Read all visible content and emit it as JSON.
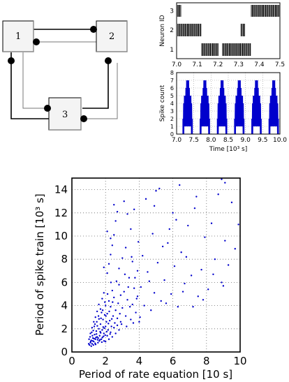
{
  "diagram": {
    "nodes": [
      {
        "id": "n1",
        "label": "1"
      },
      {
        "id": "n2",
        "label": "2"
      },
      {
        "id": "n3",
        "label": "3"
      }
    ]
  },
  "chart_data": [
    {
      "type": "raster",
      "ylabel": "Neuron ID",
      "xlim": [
        7.0,
        7.5
      ],
      "x_ticks": [
        "7.0",
        "7.1",
        "7.2",
        "7.3",
        "7.4",
        "7.5"
      ],
      "y_ticks": [
        "1",
        "2",
        "3"
      ],
      "series": [
        {
          "neuron": 3,
          "bursts": [
            [
              7.0,
              7.02
            ],
            [
              7.36,
              7.5
            ]
          ]
        },
        {
          "neuron": 2,
          "bursts": [
            [
              7.005,
              7.12
            ],
            [
              7.31,
              7.33
            ]
          ]
        },
        {
          "neuron": 1,
          "bursts": [
            [
              7.12,
              7.2
            ],
            [
              7.22,
              7.36
            ]
          ]
        }
      ]
    },
    {
      "type": "line",
      "ylabel": "Spike count",
      "xlabel": "Time [10³ s]",
      "xlim": [
        7.0,
        10.0
      ],
      "ylim": [
        0,
        8
      ],
      "x_ticks": [
        "7.0",
        "7.5",
        "8.0",
        "8.5",
        "9.0",
        "9.5",
        "10.0"
      ],
      "y_ticks": [
        "0",
        "1",
        "2",
        "3",
        "4",
        "5",
        "6",
        "7",
        "8"
      ],
      "grid": true,
      "cycle_starts": [
        7.18,
        7.68,
        8.18,
        8.68,
        9.18,
        9.68
      ],
      "cycle_length": 0.28,
      "peak": 7
    },
    {
      "type": "scatter",
      "xlabel": "Period of rate equation [10 s]",
      "ylabel": "Period of spike train [10³ s]",
      "xlim": [
        0,
        10
      ],
      "ylim": [
        0,
        15
      ],
      "x_ticks": [
        "0",
        "2",
        "4",
        "6",
        "8",
        "10"
      ],
      "y_ticks": [
        "0",
        "2",
        "4",
        "6",
        "8",
        "10",
        "12",
        "14"
      ],
      "grid": true,
      "point_color": "#0000cc",
      "points": [
        [
          1.05,
          0.6
        ],
        [
          1.1,
          0.8
        ],
        [
          1.15,
          1.0
        ],
        [
          1.2,
          0.7
        ],
        [
          1.25,
          1.2
        ],
        [
          1.3,
          0.9
        ],
        [
          1.35,
          1.5
        ],
        [
          1.4,
          1.1
        ],
        [
          1.45,
          1.8
        ],
        [
          1.5,
          1.3
        ],
        [
          1.55,
          0.8
        ],
        [
          1.6,
          2.0
        ],
        [
          1.65,
          1.4
        ],
        [
          1.7,
          2.4
        ],
        [
          1.75,
          1.1
        ],
        [
          1.8,
          1.9
        ],
        [
          1.85,
          2.8
        ],
        [
          1.9,
          1.6
        ],
        [
          1.95,
          3.2
        ],
        [
          2.0,
          2.2
        ],
        [
          1.1,
          1.6
        ],
        [
          1.2,
          2.1
        ],
        [
          1.3,
          2.6
        ],
        [
          1.4,
          3.0
        ],
        [
          1.5,
          3.5
        ],
        [
          1.6,
          4.1
        ],
        [
          1.7,
          3.7
        ],
        [
          1.8,
          4.6
        ],
        [
          1.9,
          5.1
        ],
        [
          2.0,
          4.0
        ],
        [
          1.15,
          0.5
        ],
        [
          1.22,
          1.4
        ],
        [
          1.28,
          0.6
        ],
        [
          1.33,
          2.2
        ],
        [
          1.38,
          0.75
        ],
        [
          1.43,
          1.25
        ],
        [
          1.48,
          2.6
        ],
        [
          1.53,
          1.05
        ],
        [
          1.58,
          3.1
        ],
        [
          1.63,
          0.95
        ],
        [
          1.68,
          1.75
        ],
        [
          1.73,
          2.9
        ],
        [
          1.78,
          0.85
        ],
        [
          1.83,
          3.6
        ],
        [
          1.88,
          1.35
        ],
        [
          1.93,
          2.05
        ],
        [
          1.98,
          1.45
        ],
        [
          2.05,
          2.6
        ],
        [
          2.1,
          3.3
        ],
        [
          2.15,
          1.9
        ],
        [
          2.2,
          4.4
        ],
        [
          2.25,
          2.7
        ],
        [
          2.3,
          3.9
        ],
        [
          2.35,
          2.2
        ],
        [
          2.4,
          5.3
        ],
        [
          2.45,
          3.1
        ],
        [
          2.5,
          4.7
        ],
        [
          2.55,
          2.5
        ],
        [
          2.6,
          3.6
        ],
        [
          2.65,
          6.1
        ],
        [
          2.7,
          2.9
        ],
        [
          2.75,
          4.2
        ],
        [
          2.8,
          5.8
        ],
        [
          2.85,
          3.3
        ],
        [
          2.9,
          4.9
        ],
        [
          2.95,
          2.4
        ],
        [
          3.0,
          3.8
        ],
        [
          3.1,
          5.2
        ],
        [
          3.2,
          3.1
        ],
        [
          3.3,
          4.5
        ],
        [
          3.4,
          6.4
        ],
        [
          3.5,
          2.8
        ],
        [
          3.6,
          4.1
        ],
        [
          3.7,
          5.5
        ],
        [
          3.8,
          3.4
        ],
        [
          3.9,
          4.8
        ],
        [
          4.0,
          2.6
        ],
        [
          2.1,
          6.8
        ],
        [
          2.2,
          7.6
        ],
        [
          2.3,
          8.4
        ],
        [
          2.4,
          9.2
        ],
        [
          2.5,
          10.1
        ],
        [
          2.6,
          11.3
        ],
        [
          2.5,
          12.7
        ],
        [
          3.1,
          13.0
        ],
        [
          2.8,
          7.2
        ],
        [
          3.0,
          8.1
        ],
        [
          3.2,
          9.0
        ],
        [
          3.3,
          11.9
        ],
        [
          3.5,
          10.6
        ],
        [
          3.6,
          7.8
        ],
        [
          2.7,
          12.1
        ],
        [
          2.1,
          10.4
        ],
        [
          1.9,
          7.3
        ],
        [
          2.3,
          9.8
        ],
        [
          4.1,
          5.6
        ],
        [
          4.3,
          4.0
        ],
        [
          4.5,
          6.9
        ],
        [
          4.7,
          3.6
        ],
        [
          4.9,
          5.1
        ],
        [
          5.1,
          7.7
        ],
        [
          5.3,
          4.4
        ],
        [
          5.5,
          6.2
        ],
        [
          5.7,
          9.4
        ],
        [
          5.9,
          5.0
        ],
        [
          6.1,
          7.4
        ],
        [
          6.3,
          3.9
        ],
        [
          6.5,
          8.6
        ],
        [
          6.7,
          5.9
        ],
        [
          6.9,
          10.9
        ],
        [
          7.1,
          6.6
        ],
        [
          7.3,
          12.4
        ],
        [
          7.5,
          4.8
        ],
        [
          7.7,
          7.1
        ],
        [
          7.9,
          9.9
        ],
        [
          8.1,
          5.4
        ],
        [
          8.3,
          11.1
        ],
        [
          8.5,
          8.0
        ],
        [
          8.7,
          13.6
        ],
        [
          8.9,
          6.0
        ],
        [
          9.1,
          9.6
        ],
        [
          9.3,
          7.5
        ],
        [
          9.5,
          12.9
        ],
        [
          9.7,
          8.9
        ],
        [
          9.9,
          11.0
        ],
        [
          4.4,
          13.2
        ],
        [
          5.0,
          13.9
        ],
        [
          5.2,
          14.1
        ],
        [
          6.4,
          14.4
        ],
        [
          4.8,
          10.2
        ],
        [
          6.0,
          12.0
        ],
        [
          7.4,
          13.4
        ],
        [
          8.9,
          14.9
        ],
        [
          9.1,
          14.6
        ],
        [
          4.2,
          8.3
        ],
        [
          5.4,
          9.1
        ],
        [
          6.2,
          11.4
        ],
        [
          4.6,
          6.1
        ],
        [
          3.9,
          7.0
        ],
        [
          2.0,
          0.9
        ],
        [
          2.1,
          1.4
        ],
        [
          2.2,
          1.1
        ],
        [
          2.3,
          1.7
        ],
        [
          2.4,
          1.3
        ],
        [
          2.5,
          2.1
        ],
        [
          2.6,
          1.6
        ],
        [
          2.7,
          2.3
        ],
        [
          2.8,
          1.9
        ],
        [
          2.9,
          2.6
        ],
        [
          1.0,
          0.7
        ],
        [
          1.02,
          1.1
        ],
        [
          1.08,
          1.3
        ],
        [
          1.12,
          0.9
        ],
        [
          1.18,
          1.7
        ],
        [
          1.24,
          0.95
        ],
        [
          1.27,
          1.85
        ],
        [
          1.32,
          1.15
        ],
        [
          1.37,
          2.4
        ],
        [
          1.41,
          0.65
        ],
        [
          1.46,
          1.55
        ],
        [
          1.51,
          2.25
        ],
        [
          1.56,
          1.2
        ],
        [
          1.61,
          2.85
        ],
        [
          1.66,
          1.05
        ],
        [
          1.71,
          1.65
        ],
        [
          1.76,
          3.4
        ],
        [
          1.81,
          1.25
        ],
        [
          1.86,
          2.15
        ],
        [
          1.91,
          0.95
        ],
        [
          1.96,
          4.3
        ],
        [
          2.02,
          3.1
        ],
        [
          2.07,
          1.75
        ],
        [
          2.12,
          5.0
        ],
        [
          2.17,
          2.45
        ],
        [
          2.22,
          3.5
        ],
        [
          2.27,
          1.55
        ],
        [
          2.32,
          6.0
        ],
        [
          2.37,
          2.85
        ],
        [
          2.42,
          4.3
        ],
        [
          3.15,
          6.7
        ],
        [
          3.25,
          2.2
        ],
        [
          3.35,
          5.6
        ],
        [
          3.45,
          3.9
        ],
        [
          3.55,
          8.2
        ],
        [
          3.65,
          2.5
        ],
        [
          3.75,
          6.4
        ],
        [
          3.85,
          4.6
        ],
        [
          3.95,
          9.5
        ],
        [
          4.05,
          3.0
        ],
        [
          5.6,
          4.2
        ],
        [
          6.6,
          5.2
        ],
        [
          7.2,
          3.9
        ],
        [
          7.8,
          4.5
        ],
        [
          8.4,
          6.7
        ],
        [
          9.0,
          5.7
        ],
        [
          4.9,
          12.6
        ],
        [
          5.8,
          10.6
        ],
        [
          6.8,
          8.2
        ],
        [
          3.7,
          12.3
        ]
      ]
    }
  ]
}
